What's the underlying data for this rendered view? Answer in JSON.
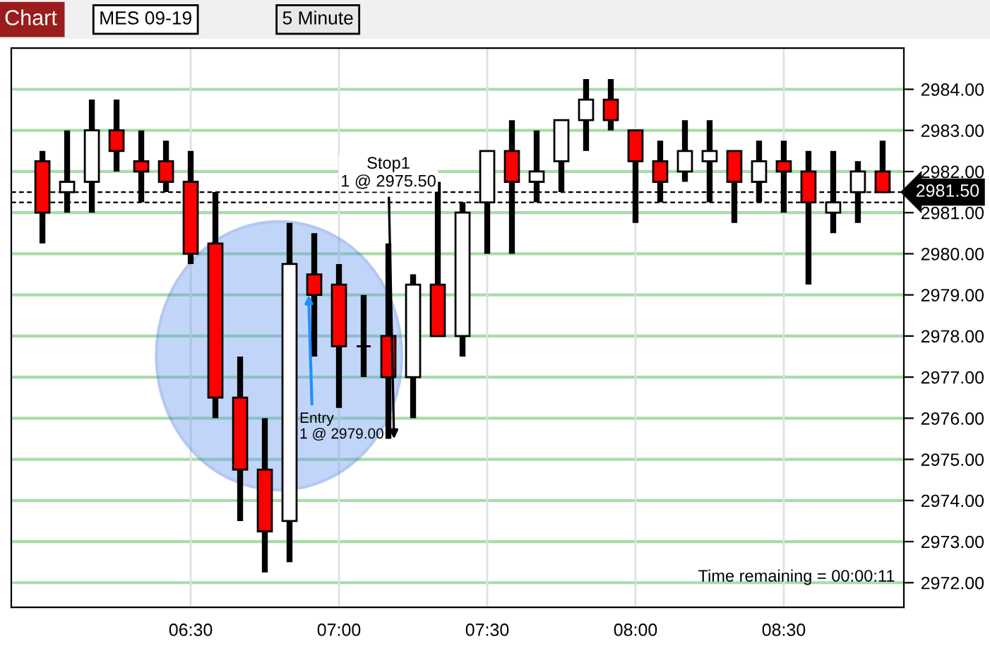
{
  "chart_data": {
    "type": "candlestick",
    "title": "MES 09-19",
    "subtitle": "5 Minute",
    "x": [
      6,
      6.0833,
      6.1667,
      6.25,
      6.3333,
      6.4167,
      6.5,
      6.5833,
      6.6667,
      6.75,
      6.8333,
      6.9167,
      7,
      7.0833,
      7.1667,
      7.25,
      7.3333,
      7.4167,
      7.5,
      7.5833,
      7.6667,
      7.75,
      7.8333,
      7.9167,
      8,
      8.0833,
      8.1667,
      8.25,
      8.3333,
      8.4167,
      8.5,
      8.5833,
      8.6667,
      8.75,
      8.8333
    ],
    "ohlc": [
      [
        2982.25,
        2982.5,
        2980.25,
        2981.0
      ],
      [
        2981.5,
        2983.0,
        2981.0,
        2981.75
      ],
      [
        2981.75,
        2983.75,
        2981.0,
        2983.0
      ],
      [
        2983.0,
        2983.75,
        2982.0,
        2982.5
      ],
      [
        2982.25,
        2983.0,
        2981.25,
        2982.0
      ],
      [
        2982.25,
        2982.75,
        2981.5,
        2981.75
      ],
      [
        2981.75,
        2982.5,
        2979.75,
        2980.0
      ],
      [
        2980.25,
        2981.5,
        2976.0,
        2976.5
      ],
      [
        2976.5,
        2977.5,
        2973.5,
        2974.75
      ],
      [
        2974.75,
        2976.0,
        2972.25,
        2973.25
      ],
      [
        2973.5,
        2980.75,
        2972.5,
        2979.75
      ],
      [
        2979.5,
        2980.5,
        2977.5,
        2979.0
      ],
      [
        2979.25,
        2979.75,
        2976.25,
        2977.75
      ],
      [
        2977.75,
        2979.0,
        2977.0,
        2977.75
      ],
      [
        2978.0,
        2980.25,
        2975.5,
        2977.0
      ],
      [
        2977.0,
        2979.5,
        2976.0,
        2979.25
      ],
      [
        2979.25,
        2981.75,
        2978.0,
        2978.0
      ],
      [
        2978.0,
        2981.25,
        2977.5,
        2981.0
      ],
      [
        2981.25,
        2982.5,
        2980.0,
        2982.5
      ],
      [
        2982.5,
        2983.25,
        2980.0,
        2981.75
      ],
      [
        2981.75,
        2983.0,
        2981.25,
        2982.0
      ],
      [
        2982.25,
        2983.25,
        2981.5,
        2983.25
      ],
      [
        2983.25,
        2984.25,
        2982.5,
        2983.75
      ],
      [
        2983.75,
        2984.25,
        2983.0,
        2983.25
      ],
      [
        2983.0,
        2983.0,
        2980.75,
        2982.25
      ],
      [
        2982.25,
        2982.75,
        2981.25,
        2981.75
      ],
      [
        2982.0,
        2983.25,
        2981.75,
        2982.5
      ],
      [
        2982.25,
        2983.25,
        2981.25,
        2982.5
      ],
      [
        2982.5,
        2982.5,
        2980.75,
        2981.75
      ],
      [
        2981.75,
        2982.75,
        2981.25,
        2982.25
      ],
      [
        2982.25,
        2982.75,
        2981.0,
        2982.0
      ],
      [
        2982.0,
        2982.5,
        2979.25,
        2981.25
      ],
      [
        2981.0,
        2982.5,
        2980.5,
        2981.25
      ],
      [
        2981.5,
        2982.25,
        2980.75,
        2982.0
      ],
      [
        2982.0,
        2982.75,
        2981.5,
        2981.5
      ]
    ],
    "colors": [
      "#ff0000",
      "#ffffff",
      "#ffffff",
      "#ff0000",
      "#ff0000",
      "#ff0000",
      "#ff0000",
      "#ff0000",
      "#ff0000",
      "#ff0000",
      "#ffffff",
      "#ff0000",
      "#ff0000",
      "#000000",
      "#ff0000",
      "#ffffff",
      "#ff0000",
      "#ffffff",
      "#ffffff",
      "#ff0000",
      "#ffffff",
      "#ffffff",
      "#ffffff",
      "#ff0000",
      "#ff0000",
      "#ff0000",
      "#ffffff",
      "#ffffff",
      "#ff0000",
      "#ffffff",
      "#ff0000",
      "#ff0000",
      "#ffffff",
      "#ffffff",
      "#ff0000"
    ],
    "xlim": [
      5.895,
      8.905
    ],
    "xticks": [
      {
        "value": 6.5,
        "label": "06:30"
      },
      {
        "value": 7,
        "label": "07:00"
      },
      {
        "value": 7.5,
        "label": "07:30"
      },
      {
        "value": 8,
        "label": "08:00"
      },
      {
        "value": 8.5,
        "label": "08:30"
      }
    ],
    "ylim": [
      2971.4,
      2985.0
    ],
    "yticks": [
      {
        "value": 2972,
        "label": "2972.00"
      },
      {
        "value": 2973,
        "label": "2973.00"
      },
      {
        "value": 2974,
        "label": "2974.00"
      },
      {
        "value": 2975,
        "label": "2975.00"
      },
      {
        "value": 2976,
        "label": "2976.00"
      },
      {
        "value": 2977,
        "label": "2977.00"
      },
      {
        "value": 2978,
        "label": "2978.00"
      },
      {
        "value": 2979,
        "label": "2979.00"
      },
      {
        "value": 2980,
        "label": "2980.00"
      },
      {
        "value": 2981,
        "label": "2981.00"
      },
      {
        "value": 2982,
        "label": "2982.00"
      },
      {
        "value": 2983,
        "label": "2983.00"
      },
      {
        "value": 2984,
        "label": "2984.00"
      }
    ],
    "grid": true,
    "ref_lines": [
      {
        "axis": "y",
        "value": 2981.5,
        "label": "2981.50",
        "line_style": "dashed",
        "color": "#000000"
      },
      {
        "axis": "y",
        "value": 2981.25,
        "line_style": "dashed",
        "color": "#000000"
      }
    ],
    "annotations": [
      {
        "text": "Entry\n1 @ 2979.00",
        "x": 6.9167,
        "y": 2979.0
      },
      {
        "text": "Stop1\n1 @ 2975.50",
        "x": 7.1667,
        "y": 2975.5
      },
      "Chart",
      "Time remaining = 00:00:11"
    ]
  }
}
